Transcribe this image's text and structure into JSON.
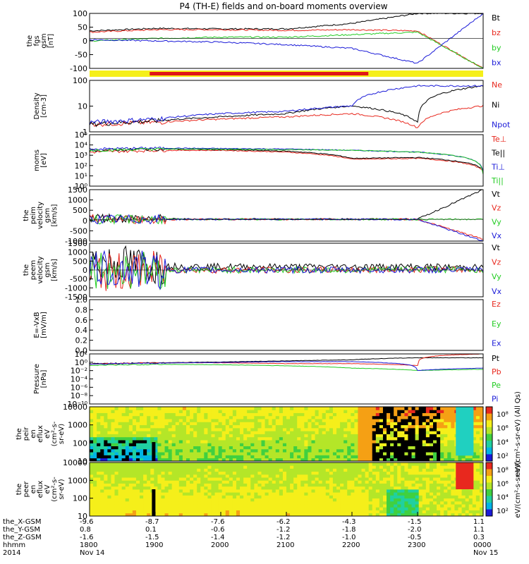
{
  "title": "P4 (TH-E) fields and on-board moments overview",
  "colors": {
    "black": "#000000",
    "red": "#e8281e",
    "green": "#22cc22",
    "blue": "#1a1ad8",
    "yellow": "#f5ef1a",
    "bar_red": "#e01818"
  },
  "panels": [
    {
      "ylabel": [
        "the",
        "fgs",
        "gsm",
        "[nT]"
      ],
      "ticks": [
        "100",
        "50",
        "0",
        "-50",
        "-100"
      ],
      "ylim": [
        -120,
        100
      ],
      "legend": [
        {
          "text": "Bt",
          "color": "#000000"
        },
        {
          "text": "bz",
          "color": "#e8281e"
        },
        {
          "text": "by",
          "color": "#22cc22"
        },
        {
          "text": "bx",
          "color": "#1a1ad8"
        }
      ]
    },
    {
      "ylabel": [
        "Density",
        "[cm-3]"
      ],
      "ticks": [
        "100",
        "10",
        "1"
      ],
      "legend": [
        {
          "text": "Ne",
          "color": "#e8281e"
        },
        {
          "text": "Ni",
          "color": "#000000"
        },
        {
          "text": "Npot",
          "color": "#1a1ad8"
        }
      ]
    },
    {
      "ylabel": [
        "moms",
        "[eV]"
      ],
      "ticks": [
        "10⁵",
        "10⁴",
        "10³",
        "10²",
        "10¹",
        "10⁰"
      ],
      "legend": [
        {
          "text": "Te⊥",
          "color": "#e8281e"
        },
        {
          "text": "Te||",
          "color": "#000000"
        },
        {
          "text": "Ti⊥",
          "color": "#1a1ad8"
        },
        {
          "text": "Ti||",
          "color": "#22cc22"
        }
      ]
    },
    {
      "ylabel": [
        "the",
        "peim",
        "velocity",
        "gsm",
        "[km/s]"
      ],
      "ticks": [
        "1500",
        "1000",
        "500",
        "0",
        "-500",
        "-1000"
      ],
      "ylim": [
        -1100,
        1500
      ],
      "legend": [
        {
          "text": "Vt",
          "color": "#000000"
        },
        {
          "text": "Vz",
          "color": "#e8281e"
        },
        {
          "text": "Vy",
          "color": "#22cc22"
        },
        {
          "text": "Vx",
          "color": "#1a1ad8"
        }
      ]
    },
    {
      "ylabel": [
        "the",
        "peem",
        "velocity",
        "gsm",
        "[km/s]"
      ],
      "ticks": [
        "1500",
        "1000",
        "500",
        "0",
        "-500",
        "-1000",
        "-1500"
      ],
      "ylim": [
        -1600,
        1600
      ],
      "legend": [
        {
          "text": "Vt",
          "color": "#000000"
        },
        {
          "text": "Vz",
          "color": "#e8281e"
        },
        {
          "text": "Vy",
          "color": "#22cc22"
        },
        {
          "text": "Vx",
          "color": "#1a1ad8"
        }
      ]
    },
    {
      "ylabel": [
        "E=-VxB",
        "[mV/m]"
      ],
      "ticks": [
        "1.0",
        "0.8",
        "0.6",
        "0.4",
        "0.2",
        "0.0"
      ],
      "ylim": [
        0,
        1
      ],
      "legend": [
        {
          "text": "Ez",
          "color": "#e8281e"
        },
        {
          "text": "Ey",
          "color": "#22cc22"
        },
        {
          "text": "Ex",
          "color": "#1a1ad8"
        }
      ]
    },
    {
      "ylabel": [
        "Pressure",
        "[nPa]"
      ],
      "ticks": [
        "10²",
        "10⁰",
        "10⁻²",
        "10⁻⁴",
        "10⁻⁶",
        "10⁻⁸",
        "10⁻¹⁰"
      ],
      "legend": [
        {
          "text": "Pt",
          "color": "#000000"
        },
        {
          "text": "Pb",
          "color": "#e8281e"
        },
        {
          "text": "Pe",
          "color": "#22cc22"
        },
        {
          "text": "Pi",
          "color": "#1a1ad8"
        }
      ]
    },
    {
      "ylabel": [
        "the",
        "peir",
        "en",
        "eflux",
        "eV",
        "(cm²-s-",
        "sr-eV)"
      ],
      "ticks": [
        "10000",
        "1000",
        "100",
        "10"
      ],
      "colorbar_title": "eV/(cm²-s-sr-eV) (All Qs)",
      "colorbar_ticks": [
        "10⁸",
        "10⁶",
        "10⁴",
        "10²"
      ]
    },
    {
      "ylabel": [
        "the",
        "peer",
        "en",
        "eflux",
        "eV",
        "(cm²-s-",
        "sr-eV)"
      ],
      "ticks": [
        "10000",
        "1000",
        "100",
        "10"
      ],
      "colorbar_title": "eV/(cm²-s-sr-eV)",
      "colorbar_ticks": [
        "10⁸",
        "10⁶",
        "10⁴",
        "10²"
      ]
    }
  ],
  "xaxis": {
    "row_labels": [
      "the_X-GSM",
      "the_Y-GSM",
      "the_Z-GSM",
      "hhmm",
      "2014"
    ],
    "columns": [
      {
        "x": "-9.6",
        "y": "0.8",
        "z": "-1.6",
        "hhmm": "1800",
        "date": "Nov 14"
      },
      {
        "x": "-8.7",
        "y": "0.1",
        "z": "-1.5",
        "hhmm": "1900",
        "date": ""
      },
      {
        "x": "-7.6",
        "y": "-0.6",
        "z": "-1.4",
        "hhmm": "2000",
        "date": ""
      },
      {
        "x": "-6.2",
        "y": "-1.2",
        "z": "-1.2",
        "hhmm": "2100",
        "date": ""
      },
      {
        "x": "-4.3",
        "y": "-1.8",
        "z": "-1.0",
        "hhmm": "2200",
        "date": ""
      },
      {
        "x": "-1.5",
        "y": "-2.0",
        "z": "-0.5",
        "hhmm": "2300",
        "date": ""
      },
      {
        "x": "1.1",
        "y": "1.1",
        "z": "0.3",
        "hhmm": "0000",
        "date": "Nov 15"
      }
    ]
  },
  "chart_data": [
    {
      "type": "line",
      "title": "P4 (TH-E) fields and on-board moments overview",
      "ylabel": "the fgs gsm [nT]",
      "x": [
        "1800",
        "1900",
        "2000",
        "2100",
        "2200",
        "2300",
        "0000"
      ],
      "ylim": [
        -120,
        100
      ],
      "series": [
        {
          "name": "Bt",
          "values": [
            30,
            40,
            38,
            38,
            60,
            100,
            100
          ]
        },
        {
          "name": "bz",
          "values": [
            25,
            35,
            35,
            32,
            35,
            30,
            -120
          ]
        },
        {
          "name": "by",
          "values": [
            -10,
            0,
            5,
            5,
            15,
            25,
            -120
          ]
        },
        {
          "name": "bx",
          "values": [
            -5,
            -10,
            -15,
            -25,
            -40,
            -100,
            100
          ]
        }
      ]
    },
    {
      "type": "line",
      "ylabel": "Density [cm-3]",
      "scale": "log",
      "x": [
        "1800",
        "1900",
        "2000",
        "2100",
        "2200",
        "2300",
        "0000"
      ],
      "series": [
        {
          "name": "Ne",
          "values": [
            0.8,
            1,
            1.5,
            2,
            3,
            0.5,
            8
          ]
        },
        {
          "name": "Ni",
          "values": [
            0.8,
            1.2,
            2,
            3,
            8,
            1,
            100
          ]
        },
        {
          "name": "Npot",
          "values": [
            1,
            1.5,
            3,
            4,
            8,
            100,
            100
          ]
        }
      ]
    },
    {
      "type": "line",
      "ylabel": "moms [eV]",
      "scale": "log",
      "x": [
        "1800",
        "1900",
        "2000",
        "2100",
        "2200",
        "2300",
        "0000"
      ],
      "series": [
        {
          "name": "Te⊥",
          "values": [
            2000,
            3000,
            3000,
            2000,
            400,
            500,
            30
          ]
        },
        {
          "name": "Te||",
          "values": [
            3000,
            4000,
            3500,
            2500,
            500,
            600,
            40
          ]
        },
        {
          "name": "Ti⊥",
          "values": [
            4000,
            5000,
            4500,
            4000,
            3000,
            2000,
            30
          ]
        },
        {
          "name": "Ti||",
          "values": [
            3000,
            4000,
            4000,
            3500,
            3000,
            2000,
            15
          ]
        }
      ]
    },
    {
      "type": "line",
      "ylabel": "the peim velocity gsm [km/s]",
      "x": [
        "1800",
        "1900",
        "2000",
        "2100",
        "2200",
        "2300",
        "0000"
      ],
      "ylim": [
        -1100,
        1500
      ],
      "series": [
        {
          "name": "Vt",
          "values": [
            100,
            20,
            10,
            10,
            10,
            10,
            1500
          ]
        },
        {
          "name": "Vz",
          "values": [
            0,
            0,
            0,
            0,
            0,
            0,
            -1000
          ]
        },
        {
          "name": "Vy",
          "values": [
            0,
            0,
            0,
            0,
            0,
            0,
            0
          ]
        },
        {
          "name": "Vx",
          "values": [
            0,
            0,
            0,
            0,
            0,
            0,
            -1100
          ]
        }
      ]
    },
    {
      "type": "line",
      "ylabel": "the peem velocity gsm [km/s]",
      "x": [
        "1800",
        "1900",
        "2000",
        "2100",
        "2200",
        "2300",
        "0000"
      ],
      "ylim": [
        -1600,
        1600
      ],
      "series": [
        {
          "name": "Vt",
          "values": [
            500,
            250,
            200,
            200,
            200,
            200,
            150
          ]
        },
        {
          "name": "Vz",
          "values": [
            -200,
            0,
            0,
            0,
            0,
            50,
            0
          ]
        },
        {
          "name": "Vy",
          "values": [
            0,
            0,
            0,
            0,
            0,
            50,
            0
          ]
        },
        {
          "name": "Vx",
          "values": [
            0,
            0,
            0,
            0,
            0,
            0,
            0
          ]
        }
      ]
    },
    {
      "type": "line",
      "ylabel": "E=-VxB [mV/m]",
      "ylim": [
        0,
        1
      ],
      "series": []
    },
    {
      "type": "line",
      "ylabel": "Pressure [nPa]",
      "scale": "log",
      "x": [
        "1800",
        "1900",
        "2000",
        "2100",
        "2200",
        "2300",
        "0000"
      ],
      "series": [
        {
          "name": "Pt",
          "values": [
            0.3,
            0.5,
            0.8,
            1.5,
            3,
            10,
            10
          ]
        },
        {
          "name": "Pb",
          "values": [
            0.2,
            0.5,
            0.5,
            0.3,
            0.3,
            0.1,
            100
          ]
        },
        {
          "name": "Pe",
          "values": [
            0.1,
            0.2,
            0.15,
            0.08,
            0.02,
            0.005,
            0.01
          ]
        },
        {
          "name": "Pi",
          "values": [
            0.2,
            0.4,
            0.6,
            1,
            1,
            0.005,
            0.02
          ]
        }
      ]
    },
    {
      "type": "heatmap",
      "ylabel": "the peir en eflux eV (cm²-s-sr-eV)",
      "scale": "log",
      "ylim": [
        7,
        20000
      ],
      "colorbar": "eV/(cm²-s-sr-eV) (All Qs)"
    },
    {
      "type": "heatmap",
      "ylabel": "the peer en eflux eV (cm²-s-sr-eV)",
      "scale": "log",
      "ylim": [
        7,
        20000
      ],
      "colorbar": "eV/(cm²-s-sr-eV)"
    }
  ]
}
